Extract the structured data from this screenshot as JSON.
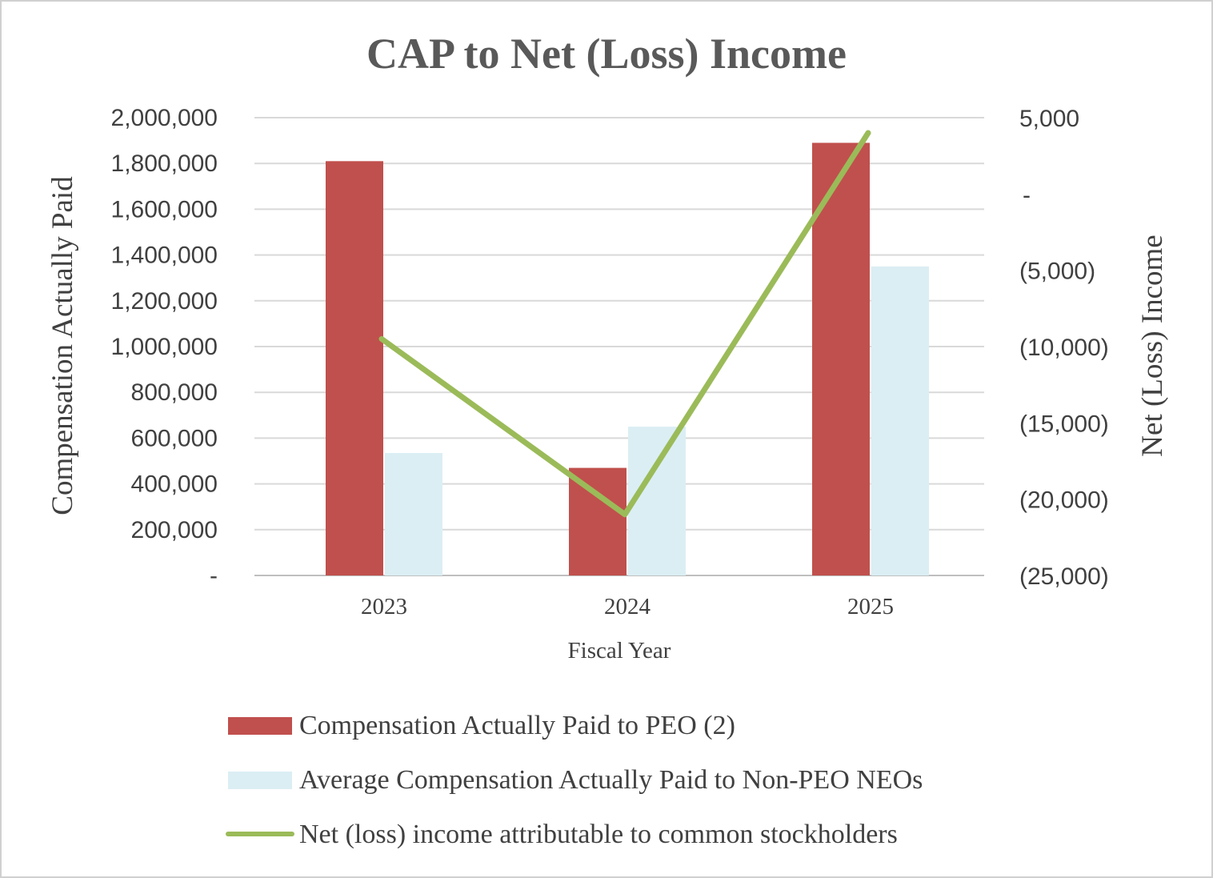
{
  "chart_data": {
    "type": "bar",
    "title": "CAP to Net (Loss) Income",
    "xlabel": "Fiscal Year",
    "ylabel_left": "Compensation Actually Paid",
    "ylabel_right": "Net (Loss) Income",
    "categories": [
      "2023",
      "2024",
      "2025"
    ],
    "ylim_left": [
      0,
      2000000
    ],
    "ylim_right": [
      -25000,
      5000
    ],
    "left_ticks": [
      {
        "value": 0,
        "label": "-"
      },
      {
        "value": 200000,
        "label": "200,000"
      },
      {
        "value": 400000,
        "label": "400,000"
      },
      {
        "value": 600000,
        "label": "600,000"
      },
      {
        "value": 800000,
        "label": "800,000"
      },
      {
        "value": 1000000,
        "label": "1,000,000"
      },
      {
        "value": 1200000,
        "label": "1,200,000"
      },
      {
        "value": 1400000,
        "label": "1,400,000"
      },
      {
        "value": 1600000,
        "label": "1,600,000"
      },
      {
        "value": 1800000,
        "label": "1,800,000"
      },
      {
        "value": 2000000,
        "label": "2,000,000"
      }
    ],
    "right_ticks": [
      {
        "value": -25000,
        "label": "(25,000)"
      },
      {
        "value": -20000,
        "label": "(20,000)"
      },
      {
        "value": -15000,
        "label": "(15,000)"
      },
      {
        "value": -10000,
        "label": "(10,000)"
      },
      {
        "value": -5000,
        "label": "(5,000)"
      },
      {
        "value": 0,
        "label": "-"
      },
      {
        "value": 5000,
        "label": "5,000"
      }
    ],
    "grid": true,
    "legend_position": "bottom",
    "series": [
      {
        "name": "Compensation Actually Paid to PEO (2)",
        "type": "bar",
        "axis": "left",
        "color": "#c0504d",
        "values": [
          1810000,
          470000,
          1890000
        ]
      },
      {
        "name": "Average Compensation Actually Paid to Non-PEO NEOs",
        "type": "bar",
        "axis": "left",
        "color": "#dbeef4",
        "values": [
          535000,
          650000,
          1350000
        ]
      },
      {
        "name": "Net (loss) income attributable to common stockholders",
        "type": "line",
        "axis": "right",
        "color": "#9bbb59",
        "values": [
          -9500,
          -21000,
          4000
        ]
      }
    ]
  }
}
